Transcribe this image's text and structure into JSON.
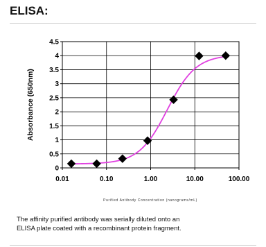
{
  "header": {
    "title": "ELISA:"
  },
  "chart_data": {
    "type": "line",
    "xlabel": "Purified Antibody Concentration (nanograms/mL)",
    "ylabel": "Absorbance (650nm)",
    "x_scale": "log",
    "x_ticks": [
      0.01,
      0.1,
      1,
      10,
      100
    ],
    "x_tick_labels": [
      "0.01",
      "0.10",
      "1.00",
      "10.00",
      "100.00"
    ],
    "y_ticks": [
      0,
      0.5,
      1,
      1.5,
      2,
      2.5,
      3,
      3.5,
      4,
      4.5
    ],
    "y_tick_labels": [
      "0",
      "0.5",
      "1",
      "1.5",
      "2",
      "2.5",
      "3",
      "3.5",
      "4",
      "4.5"
    ],
    "xlim": [
      0.01,
      100
    ],
    "ylim": [
      0,
      4.5
    ],
    "grid": true,
    "series": [
      {
        "x": [
          0.016,
          0.06,
          0.23,
          0.85,
          3.3,
          12.5,
          50
        ],
        "values": [
          0.15,
          0.15,
          0.33,
          0.97,
          2.43,
          3.99,
          4.0
        ],
        "marker": "diamond",
        "marker_color": "#000000",
        "line_color": "#e040e0",
        "fit": "sigmoid"
      }
    ]
  },
  "caption": {
    "line1": "The affinity purified antibody was serially diluted onto an",
    "line2": "ELISA plate coated with a recombinant protein fragment."
  }
}
